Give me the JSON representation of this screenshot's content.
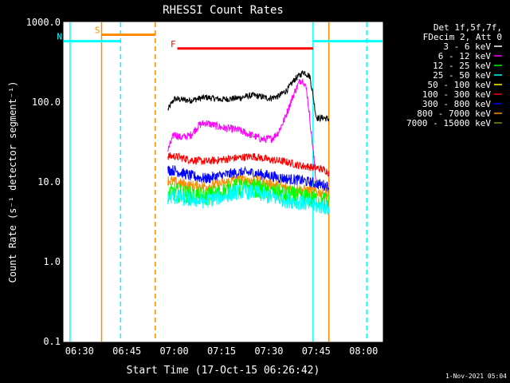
{
  "chart_data": {
    "type": "line",
    "title": "RHESSI Count Rates",
    "xlabel": "Start Time (17-Oct-15 06:26:42)",
    "ylabel": "Count Rate (s⁻¹ detector segment⁻¹)",
    "yscale": "log",
    "ylim": [
      0.1,
      1000
    ],
    "xlim": [
      "06:25",
      "08:06"
    ],
    "x_tick_labels": [
      "06:30",
      "06:45",
      "07:00",
      "07:15",
      "07:30",
      "07:45",
      "08:00"
    ],
    "y_tick_labels": [
      "0.1",
      "1.0",
      "10.0",
      "100.0",
      "1000.0"
    ],
    "legend": {
      "position": "top-right",
      "header": [
        "Det 1f,5f,7f,",
        "FDecim 2, Att 0"
      ],
      "entries": [
        {
          "label": "3 - 6 keV",
          "color": "#ffffff"
        },
        {
          "label": "6 - 12 keV",
          "color": "#ff00ff"
        },
        {
          "label": "12 - 25 keV",
          "color": "#00ff00"
        },
        {
          "label": "25 - 50 keV",
          "color": "#00ffff"
        },
        {
          "label": "50 - 100 keV",
          "color": "#ffff00"
        },
        {
          "label": "100 - 300 keV",
          "color": "#ff0000"
        },
        {
          "label": "300 - 800 keV",
          "color": "#0000ff"
        },
        {
          "label": "800 - 7000 keV",
          "color": "#ff8c00"
        },
        {
          "label": "7000 - 15000 keV",
          "color": "#8b8b00"
        }
      ]
    },
    "series": [
      {
        "name": "3 - 6 keV",
        "color": "#000000",
        "noise": 0.04,
        "x": [
          "06:58",
          "07:00",
          "07:05",
          "07:10",
          "07:15",
          "07:20",
          "07:25",
          "07:30",
          "07:33",
          "07:36",
          "07:38",
          "07:41",
          "07:43",
          "07:44",
          "07:45",
          "07:46",
          "07:47",
          "07:49"
        ],
        "y": [
          80,
          110,
          105,
          115,
          108,
          112,
          122,
          112,
          118,
          145,
          190,
          240,
          210,
          120,
          65,
          62,
          64,
          61
        ]
      },
      {
        "name": "6 - 12 keV",
        "color": "#ff00ff",
        "noise": 0.05,
        "x": [
          "06:58",
          "07:00",
          "07:02",
          "07:05",
          "07:08",
          "07:10",
          "07:15",
          "07:20",
          "07:25",
          "07:28",
          "07:31",
          "07:33",
          "07:35",
          "07:38",
          "07:40",
          "07:41",
          "07:42",
          "07:43",
          "07:44",
          "07:45"
        ],
        "y": [
          25,
          40,
          36,
          38,
          52,
          55,
          48,
          45,
          38,
          34,
          35,
          42,
          62,
          130,
          190,
          185,
          140,
          60,
          25,
          10
        ]
      },
      {
        "name": "100 - 300 keV",
        "color": "#ff0000",
        "noise": 0.05,
        "x": [
          "06:58",
          "07:00",
          "07:05",
          "07:10",
          "07:15",
          "07:20",
          "07:25",
          "07:30",
          "07:35",
          "07:40",
          "07:45",
          "07:48",
          "07:49"
        ],
        "y": [
          21,
          21,
          19,
          18,
          19,
          20,
          21,
          19,
          18,
          16,
          15,
          14,
          13
        ]
      },
      {
        "name": "300 - 800 keV",
        "color": "#0000ff",
        "noise": 0.07,
        "x": [
          "06:58",
          "07:00",
          "07:05",
          "07:10",
          "07:15",
          "07:20",
          "07:25",
          "07:30",
          "07:35",
          "07:40",
          "07:45",
          "07:48",
          "07:49"
        ],
        "y": [
          14,
          14,
          12,
          11,
          12,
          13,
          13,
          12,
          11,
          10.5,
          9.5,
          9,
          8.5
        ]
      },
      {
        "name": "800 - 7000 keV",
        "color": "#ff8c00",
        "noise": 0.07,
        "x": [
          "06:58",
          "07:00",
          "07:05",
          "07:10",
          "07:15",
          "07:20",
          "07:25",
          "07:30",
          "07:35",
          "07:40",
          "07:45",
          "07:48",
          "07:49"
        ],
        "y": [
          10.5,
          10,
          9,
          8.8,
          9.5,
          10.5,
          10.5,
          9.5,
          8.5,
          8,
          7.5,
          7.2,
          7
        ]
      },
      {
        "name": "12 - 25 keV",
        "color": "#00ff00",
        "noise": 0.12,
        "x": [
          "06:58",
          "07:00",
          "07:05",
          "07:10",
          "07:15",
          "07:20",
          "07:25",
          "07:30",
          "07:35",
          "07:40",
          "07:45",
          "07:48",
          "07:49"
        ],
        "y": [
          7,
          7.5,
          6.8,
          6.5,
          7.5,
          8.5,
          8.5,
          7.5,
          7,
          6.5,
          6,
          5.8,
          5.5
        ]
      },
      {
        "name": "25 - 50 keV",
        "color": "#00ffff",
        "noise": 0.1,
        "x": [
          "06:58",
          "07:00",
          "07:05",
          "07:10",
          "07:15",
          "07:20",
          "07:25",
          "07:30",
          "07:35",
          "07:40",
          "07:45",
          "07:48",
          "07:49"
        ],
        "y": [
          6.5,
          6.5,
          6,
          5.8,
          6.5,
          7.5,
          7.5,
          6.5,
          6,
          5.5,
          5,
          4.8,
          4.5
        ]
      }
    ],
    "annotations": [
      {
        "label": "S",
        "color": "#ff8c00",
        "x_start": "06:37",
        "x_end": "06:54",
        "y": 700
      },
      {
        "label": "N",
        "color": "#00ffff",
        "x_start": "06:25",
        "x_end": "06:43",
        "y": 580
      },
      {
        "label": "F",
        "color": "#ff0000",
        "x_start": "07:01",
        "x_end": "07:44",
        "y": 470
      }
    ],
    "verticals": [
      {
        "x": "06:27",
        "color": "#00ffff",
        "style": "solid"
      },
      {
        "x": "06:37",
        "color": "#ff8c00",
        "style": "solid"
      },
      {
        "x": "06:43",
        "color": "#00ffff",
        "style": "dashed"
      },
      {
        "x": "06:54",
        "color": "#ff8c00",
        "style": "dashed"
      },
      {
        "x": "07:44",
        "color": "#00ffff",
        "style": "solid"
      },
      {
        "x": "07:49",
        "color": "#ff8c00",
        "style": "solid"
      },
      {
        "x": "08:01",
        "color": "#00ffff",
        "style": "dashed"
      }
    ],
    "right_segments": [
      {
        "x": "07:44",
        "x_end": "08:06",
        "y": 580,
        "color": "#00ffff"
      }
    ]
  },
  "footer_timestamp": "1-Nov-2021 05:04"
}
